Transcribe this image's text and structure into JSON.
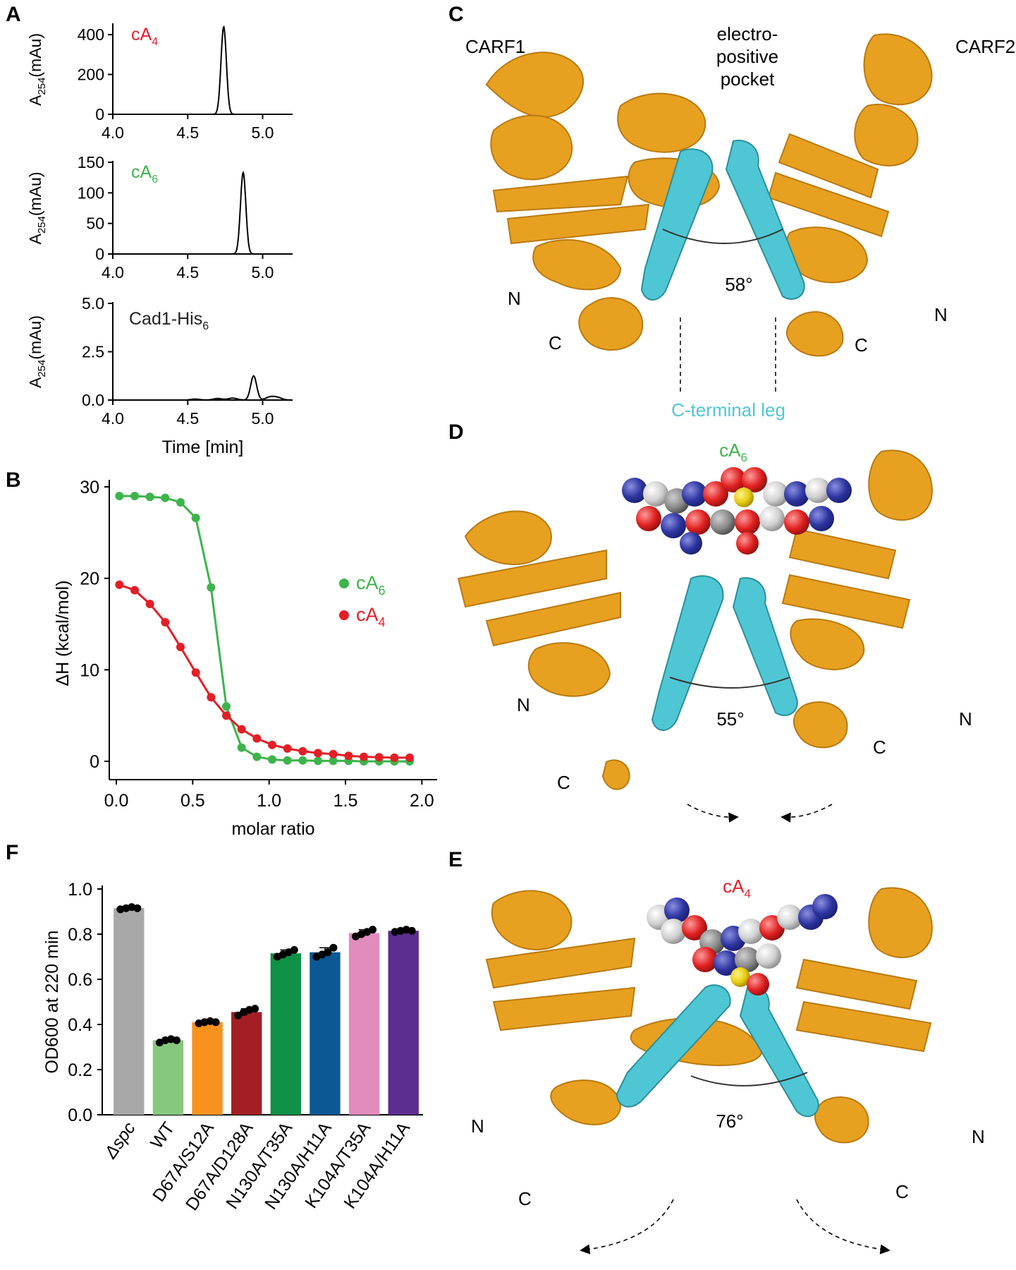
{
  "colors": {
    "protein": "#e8a020",
    "helix_cterm": "#4fc6d4",
    "black": "#000000",
    "red": "#e41e26",
    "green": "#3cb44b",
    "cyan_text": "#4fc6d4"
  },
  "panels": {
    "A": {
      "label": "A"
    },
    "B": {
      "label": "B"
    },
    "C": {
      "label": "C"
    },
    "D": {
      "label": "D"
    },
    "E": {
      "label": "E"
    },
    "F": {
      "label": "F"
    }
  },
  "chart_data": [
    {
      "type": "line",
      "panel": "A",
      "subplot": "cA4",
      "label_main": "cA",
      "label_sub": "4",
      "label_color": "#e41e26",
      "ylabel_main": "A",
      "ylabel_sub": "254",
      "ylabel_rest": "(mAu)",
      "xlim": [
        4.0,
        5.2
      ],
      "ylim": [
        0,
        450
      ],
      "xticks": [
        "4.0",
        "4.5",
        "5.0"
      ],
      "yticks": [
        "0",
        "200",
        "400"
      ],
      "peak": {
        "x": 4.74,
        "height": 440,
        "width": 0.018
      },
      "baseline_bumps": []
    },
    {
      "type": "line",
      "panel": "A",
      "subplot": "cA6",
      "label_main": "cA",
      "label_sub": "6",
      "label_color": "#3cb44b",
      "ylabel_main": "A",
      "ylabel_sub": "254",
      "ylabel_rest": "(mAu)",
      "xlim": [
        4.0,
        5.2
      ],
      "ylim": [
        0,
        150
      ],
      "xticks": [
        "4.0",
        "4.5",
        "5.0"
      ],
      "yticks": [
        "0",
        "50",
        "100",
        "150"
      ],
      "peak": {
        "x": 4.87,
        "height": 133,
        "width": 0.018
      },
      "baseline_bumps": []
    },
    {
      "type": "line",
      "panel": "A",
      "subplot": "Cad1-His6",
      "label_main": "Cad1-His",
      "label_sub": "6",
      "label_color": "#222222",
      "ylabel_main": "A",
      "ylabel_sub": "254",
      "ylabel_rest": "(mAu)",
      "xlabel": "Time [min]",
      "xlim": [
        4.0,
        5.2
      ],
      "ylim": [
        0,
        5.0
      ],
      "xticks": [
        "4.0",
        "4.5",
        "5.0"
      ],
      "yticks": [
        "0.0",
        "2.5",
        "5.0"
      ],
      "peak": {
        "x": 4.94,
        "height": 1.25,
        "width": 0.02
      },
      "baseline_bumps": [
        [
          4.55,
          0.05
        ],
        [
          4.7,
          0.08
        ],
        [
          4.8,
          0.1
        ],
        [
          5.05,
          0.15
        ],
        [
          5.1,
          0.12
        ]
      ]
    },
    {
      "type": "line",
      "panel": "B",
      "ylabel": "ΔH (kcal/mol)",
      "xlabel": "molar ratio",
      "xlim": [
        0,
        2.1
      ],
      "ylim": [
        -2,
        30
      ],
      "xticks": [
        "0.0",
        "0.5",
        "1.0",
        "1.5",
        "2.0"
      ],
      "yticks": [
        "0",
        "10",
        "20",
        "30"
      ],
      "series": [
        {
          "name_main": "cA",
          "name_sub": "6",
          "color": "#3cb44b",
          "x": [
            0.02,
            0.12,
            0.22,
            0.32,
            0.42,
            0.52,
            0.62,
            0.72,
            0.82,
            0.92,
            1.02,
            1.12,
            1.22,
            1.32,
            1.42,
            1.52,
            1.62,
            1.72,
            1.82,
            1.92
          ],
          "y": [
            29,
            29,
            28.9,
            28.8,
            28.3,
            26.6,
            19,
            6,
            1.5,
            0.5,
            0.2,
            0.1,
            0.1,
            0.05,
            0.05,
            0.05,
            0,
            0,
            0,
            0
          ]
        },
        {
          "name_main": "cA",
          "name_sub": "4",
          "color": "#e41e26",
          "x": [
            0.02,
            0.12,
            0.22,
            0.32,
            0.42,
            0.52,
            0.62,
            0.72,
            0.82,
            0.92,
            1.02,
            1.12,
            1.22,
            1.32,
            1.42,
            1.52,
            1.62,
            1.72,
            1.82,
            1.92
          ],
          "y": [
            19.3,
            18.7,
            17.2,
            15.2,
            12.5,
            9.7,
            7.0,
            5.0,
            3.5,
            2.5,
            1.8,
            1.4,
            1.1,
            0.9,
            0.8,
            0.6,
            0.5,
            0.45,
            0.4,
            0.4
          ]
        }
      ]
    },
    {
      "type": "bar",
      "panel": "F",
      "ylabel": "OD600 at 220 min",
      "ylim": [
        0,
        1.0
      ],
      "yticks": [
        "0.0",
        "0.2",
        "0.4",
        "0.6",
        "0.8",
        "1.0"
      ],
      "categories": [
        "Δspc",
        "WT",
        "D67A/S12A",
        "D67A/D128A",
        "N130A/T35A",
        "N130A/H11A",
        "K104A/T35A",
        "K104A/H11A"
      ],
      "values": [
        0.915,
        0.33,
        0.41,
        0.455,
        0.715,
        0.72,
        0.805,
        0.815
      ],
      "errors": [
        0.007,
        0.008,
        0.005,
        0.015,
        0.015,
        0.02,
        0.015,
        0.007
      ],
      "points": [
        [
          0.91,
          0.915,
          0.92,
          0.915
        ],
        [
          0.32,
          0.33,
          0.335,
          0.33
        ],
        [
          0.405,
          0.41,
          0.415,
          0.41
        ],
        [
          0.44,
          0.455,
          0.465,
          0.47
        ],
        [
          0.7,
          0.71,
          0.72,
          0.73
        ],
        [
          0.7,
          0.71,
          0.72,
          0.74
        ],
        [
          0.79,
          0.8,
          0.81,
          0.82
        ],
        [
          0.81,
          0.815,
          0.82,
          0.815
        ]
      ],
      "colors": [
        "#a8a8a8",
        "#86c97e",
        "#f7921e",
        "#a31e24",
        "#0f9147",
        "#0b5895",
        "#e28bbd",
        "#5b2d8e"
      ]
    }
  ],
  "structures": {
    "C": {
      "carf1": "CARF1",
      "carf2": "CARF2",
      "pocket_line1": "electro-",
      "pocket_line2": "positive",
      "pocket_line3": "pocket",
      "angle": "58°",
      "n_left": "N",
      "n_right": "N",
      "c_left": "C",
      "c_right": "C",
      "cterm_leg": "C-terminal leg"
    },
    "D": {
      "ligand_main": "cA",
      "ligand_sub": "6",
      "angle": "55°",
      "n_left": "N",
      "n_right": "N",
      "c_left": "C",
      "c_right": "C"
    },
    "E": {
      "ligand_main": "cA",
      "ligand_sub": "4",
      "angle": "76°",
      "n_left": "N",
      "n_right": "N",
      "c_left": "C",
      "c_right": "C"
    }
  }
}
